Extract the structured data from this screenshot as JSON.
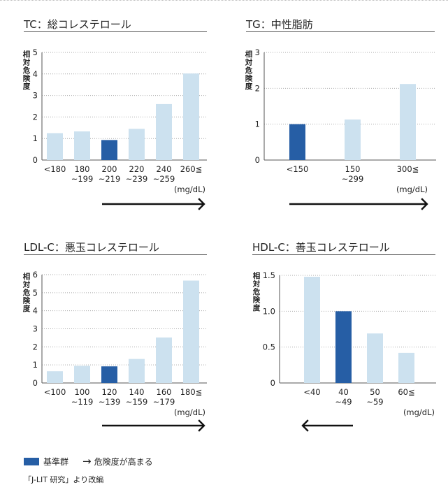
{
  "colors": {
    "reference": "#265ea5",
    "bar": "#cce1ef",
    "axis": "#555555",
    "grid": "#aaaaaa",
    "text": "#222222"
  },
  "ylabel_text": "相対危険度",
  "legend": {
    "reference_label": "基準群",
    "arrow_label": "危険度が高まる"
  },
  "source": "「J-LIT 研究」より改編",
  "chart_data": [
    {
      "type": "bar",
      "title": "TC：総コレステロール",
      "ylabel": "相対危険度",
      "unit": "(mg/dL)",
      "categories": [
        "<180",
        "180\n~199",
        "200\n~219",
        "220\n~239",
        "240\n~259",
        "260≦"
      ],
      "values": [
        1.25,
        1.33,
        0.93,
        1.45,
        2.6,
        4.02
      ],
      "reference_index": 2,
      "ylim": [
        0,
        5
      ],
      "yticks": [
        0,
        1,
        2,
        3,
        4,
        5
      ],
      "ytick_labels": [
        "0",
        "1",
        "2",
        "3",
        "4",
        "5"
      ],
      "arrow": "right",
      "grid": true
    },
    {
      "type": "bar",
      "title": "TG：中性脂肪",
      "ylabel": "相対危険度",
      "unit": "(mg/dL)",
      "categories": [
        "<150",
        "150\n~299",
        "300≦"
      ],
      "values": [
        1.0,
        1.13,
        2.12
      ],
      "reference_index": 0,
      "ylim": [
        0,
        3
      ],
      "yticks": [
        0,
        1,
        2,
        3
      ],
      "ytick_labels": [
        "0",
        "1",
        "2",
        "3"
      ],
      "arrow": "right",
      "grid": true
    },
    {
      "type": "bar",
      "title": "LDL-C：悪玉コレステロール",
      "ylabel": "相対危険度",
      "unit": "(mg/dL)",
      "categories": [
        "<100",
        "100\n~119",
        "120\n~139",
        "140\n~159",
        "160\n~179",
        "180≦"
      ],
      "values": [
        0.65,
        0.95,
        0.92,
        1.33,
        2.52,
        5.67
      ],
      "reference_index": 2,
      "ylim": [
        0,
        6
      ],
      "yticks": [
        0,
        1,
        2,
        3,
        4,
        5,
        6
      ],
      "ytick_labels": [
        "0",
        "1",
        "2",
        "3",
        "4",
        "5",
        "6"
      ],
      "arrow": "right",
      "grid": true
    },
    {
      "type": "bar",
      "title": "HDL-C：善玉コレステロール",
      "ylabel": "相対危険度",
      "unit": "(mg/dL)",
      "categories": [
        "<40",
        "40\n~49",
        "50\n~59",
        "60≦"
      ],
      "values": [
        1.48,
        1.0,
        0.69,
        0.42
      ],
      "reference_index": 1,
      "ylim": [
        0,
        1.5
      ],
      "yticks": [
        0,
        0.5,
        1.0,
        1.5
      ],
      "ytick_labels": [
        "0",
        "0.5",
        "1.0",
        "1.5"
      ],
      "arrow": "left",
      "grid": true
    }
  ]
}
